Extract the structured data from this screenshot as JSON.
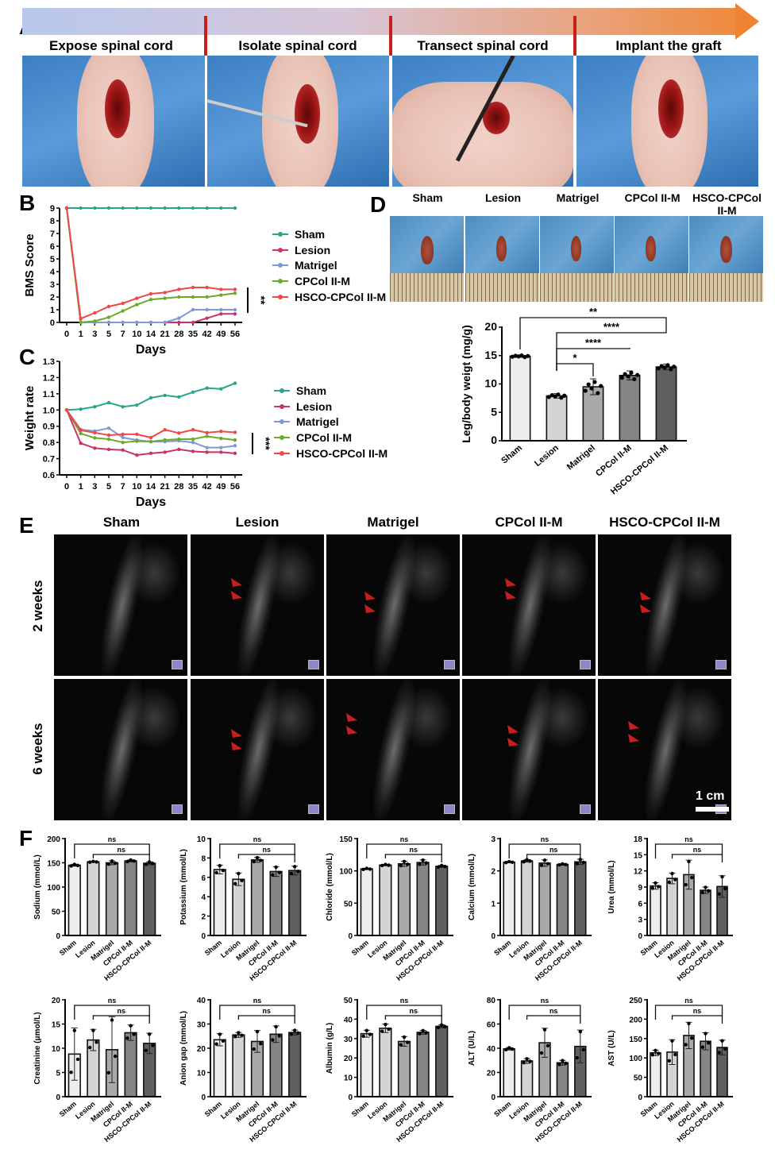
{
  "panel_labels": {
    "a": "A",
    "b": "B",
    "c": "C",
    "d": "D",
    "e": "E",
    "f": "F"
  },
  "panel_a": {
    "steps": [
      "Expose spinal cord",
      "Isolate spinal cord",
      "Transect spinal cord",
      "Implant the graft"
    ]
  },
  "groups": [
    "Sham",
    "Lesion",
    "Matrigel",
    "CPCol II-M",
    "HSCO-CPCol II-M"
  ],
  "colors": {
    "series": [
      "#2aa58b",
      "#c8336b",
      "#7f98d6",
      "#6aab2a",
      "#f0484a"
    ],
    "bars": [
      "#ededed",
      "#d4d4d4",
      "#a9a9a9",
      "#858585",
      "#5f5f5f"
    ],
    "arrow": "#c81e1e"
  },
  "panel_d": {
    "photo_labels": [
      "Sham",
      "Lesion",
      "Matrigel",
      "CPCol II-M",
      "HSCO-CPCol II-M"
    ]
  },
  "panel_e": {
    "columns": [
      "Sham",
      "Lesion",
      "Matrigel",
      "CPCol II-M",
      "HSCO-CPCol II-M"
    ],
    "rows": [
      "2 weeks",
      "6 weeks"
    ],
    "scale_bar": "1 cm"
  },
  "chart_data": [
    {
      "id": "B",
      "type": "line",
      "ylabel": "BMS Score",
      "xlabel": "Days",
      "x": [
        "0",
        "1",
        "3",
        "5",
        "7",
        "10",
        "14",
        "21",
        "28",
        "35",
        "42",
        "49",
        "56"
      ],
      "ylim": [
        0,
        9
      ],
      "yticks": [
        0,
        1,
        2,
        3,
        4,
        5,
        6,
        7,
        8,
        9
      ],
      "legend_position": "right",
      "significance": "**",
      "series": [
        {
          "name": "Sham",
          "values": [
            9,
            9,
            9,
            9,
            9,
            9,
            9,
            9,
            9,
            9,
            9,
            9,
            9
          ]
        },
        {
          "name": "Lesion",
          "values": [
            9,
            0,
            0,
            0,
            0,
            0,
            0,
            0,
            0,
            0,
            0.33,
            0.67,
            0.67
          ]
        },
        {
          "name": "Matrigel",
          "values": [
            9,
            0,
            0,
            0,
            0,
            0,
            0,
            0,
            0.33,
            1,
            1,
            1,
            1
          ]
        },
        {
          "name": "CPCol II-M",
          "values": [
            9,
            0,
            0.1,
            0.4,
            0.9,
            1.4,
            1.8,
            1.9,
            2,
            2,
            2,
            2.15,
            2.3
          ]
        },
        {
          "name": "HSCO-CPCol II-M",
          "values": [
            9,
            0.3,
            0.75,
            1.25,
            1.5,
            1.9,
            2.25,
            2.35,
            2.6,
            2.75,
            2.75,
            2.6,
            2.6
          ]
        }
      ]
    },
    {
      "id": "C",
      "type": "line",
      "ylabel": "Weight rate",
      "xlabel": "Days",
      "x": [
        "0",
        "1",
        "3",
        "5",
        "7",
        "10",
        "14",
        "21",
        "28",
        "35",
        "42",
        "49",
        "56"
      ],
      "ylim": [
        0.6,
        1.3
      ],
      "yticks": [
        "0.6",
        "0.7",
        "0.8",
        "0.9",
        "1.0",
        "1.1",
        "1.2",
        "1.3"
      ],
      "legend_position": "right",
      "significance": "***",
      "series": [
        {
          "name": "Sham",
          "values": [
            1,
            1.005,
            1.02,
            1.045,
            1.02,
            1.03,
            1.075,
            1.09,
            1.08,
            1.11,
            1.135,
            1.13,
            1.165
          ]
        },
        {
          "name": "Lesion",
          "values": [
            1,
            0.795,
            0.765,
            0.757,
            0.753,
            0.722,
            0.733,
            0.74,
            0.757,
            0.745,
            0.74,
            0.74,
            0.733
          ]
        },
        {
          "name": "Matrigel",
          "values": [
            1,
            0.88,
            0.87,
            0.888,
            0.83,
            0.815,
            0.805,
            0.805,
            0.81,
            0.8,
            0.768,
            0.768,
            0.78
          ]
        },
        {
          "name": "CPCol II-M",
          "values": [
            1,
            0.855,
            0.828,
            0.82,
            0.8,
            0.808,
            0.805,
            0.815,
            0.82,
            0.82,
            0.838,
            0.825,
            0.815
          ]
        },
        {
          "name": "HSCO-CPCol II-M",
          "values": [
            1,
            0.875,
            0.86,
            0.845,
            0.85,
            0.85,
            0.83,
            0.878,
            0.858,
            0.878,
            0.86,
            0.868,
            0.862
          ]
        }
      ]
    },
    {
      "id": "D",
      "type": "bar",
      "ylabel": "Leg/body weigt (mg/g)",
      "categories": [
        "Sham",
        "Lesion",
        "Matrigel",
        "CPCol II-M",
        "HSCO-CPCol II-M"
      ],
      "values": [
        14.9,
        7.9,
        9.5,
        11.5,
        13.0
      ],
      "sd": [
        0.2,
        0.4,
        1.4,
        0.8,
        0.5
      ],
      "ylim": [
        0,
        20
      ],
      "yticks": [
        0,
        5,
        10,
        15,
        20
      ],
      "comparisons": [
        {
          "from": "Sham",
          "to": "HSCO-CPCol II-M",
          "label": "**"
        },
        {
          "from": "Lesion",
          "to": "HSCO-CPCol II-M",
          "label": "****"
        },
        {
          "from": "Lesion",
          "to": "CPCol II-M",
          "label": "****"
        },
        {
          "from": "Lesion",
          "to": "Matrigel",
          "label": "*"
        }
      ]
    },
    {
      "id": "F1",
      "type": "bar",
      "ylabel": "Sodium (mmol/L)",
      "categories": [
        "Sham",
        "Lesion",
        "Matrigel",
        "CPCol II-M",
        "HSCO-CPCol II-M"
      ],
      "values": [
        145,
        152,
        150,
        154,
        149
      ],
      "sd": [
        2,
        1,
        4,
        2,
        3
      ],
      "ylim": [
        0,
        200
      ],
      "yticks": [
        0,
        50,
        100,
        150,
        200
      ],
      "comparisons": [
        {
          "from": "Sham",
          "to": "HSCO-CPCol II-M",
          "label": "ns"
        },
        {
          "from": "Lesion",
          "to": "HSCO-CPCol II-M",
          "label": "ns"
        }
      ]
    },
    {
      "id": "F2",
      "type": "bar",
      "ylabel": "Potassium (mmol/L)",
      "categories": [
        "Sham",
        "Lesion",
        "Matrigel",
        "CPCol II-M",
        "HSCO-CPCol II-M"
      ],
      "values": [
        6.8,
        5.8,
        7.8,
        6.6,
        6.7
      ],
      "sd": [
        0.45,
        0.65,
        0.25,
        0.5,
        0.45
      ],
      "ylim": [
        0,
        10
      ],
      "yticks": [
        0,
        2,
        4,
        6,
        8,
        10
      ],
      "comparisons": [
        {
          "from": "Sham",
          "to": "HSCO-CPCol II-M",
          "label": "ns"
        },
        {
          "from": "Lesion",
          "to": "HSCO-CPCol II-M",
          "label": "ns"
        }
      ]
    },
    {
      "id": "F3",
      "type": "bar",
      "ylabel": "Chloride (mmol/L)",
      "categories": [
        "Sham",
        "Lesion",
        "Matrigel",
        "CPCol II-M",
        "HSCO-CPCol II-M"
      ],
      "values": [
        103,
        109,
        111,
        113,
        107
      ],
      "sd": [
        1,
        1,
        4,
        4,
        1.5
      ],
      "ylim": [
        0,
        150
      ],
      "yticks": [
        0,
        50,
        100,
        150
      ],
      "comparisons": [
        {
          "from": "Sham",
          "to": "HSCO-CPCol II-M",
          "label": "ns"
        },
        {
          "from": "Lesion",
          "to": "HSCO-CPCol II-M",
          "label": "ns"
        }
      ]
    },
    {
      "id": "F4",
      "type": "bar",
      "ylabel": "Calcium (mmol/L)",
      "categories": [
        "Sham",
        "Lesion",
        "Matrigel",
        "CPCol II-M",
        "HSCO-CPCol II-M"
      ],
      "values": [
        2.27,
        2.31,
        2.24,
        2.2,
        2.28
      ],
      "sd": [
        0.02,
        0.04,
        0.1,
        0.02,
        0.08
      ],
      "ylim": [
        0,
        3
      ],
      "yticks": [
        0,
        1,
        2,
        3
      ],
      "comparisons": [
        {
          "from": "Sham",
          "to": "HSCO-CPCol II-M",
          "label": "ns"
        },
        {
          "from": "Lesion",
          "to": "HSCO-CPCol II-M",
          "label": "ns"
        }
      ]
    },
    {
      "id": "F5",
      "type": "bar",
      "ylabel": "Urea (mmol/L)",
      "categories": [
        "Sham",
        "Lesion",
        "Matrigel",
        "CPCol II-M",
        "HSCO-CPCol II-M"
      ],
      "values": [
        9.2,
        10.6,
        11.3,
        8.4,
        9.1
      ],
      "sd": [
        0.6,
        1.0,
        2.7,
        0.6,
        2.0
      ],
      "ylim": [
        0,
        18
      ],
      "yticks": [
        0,
        3,
        6,
        9,
        12,
        15,
        18
      ],
      "comparisons": [
        {
          "from": "Sham",
          "to": "HSCO-CPCol II-M",
          "label": "ns"
        },
        {
          "from": "Lesion",
          "to": "HSCO-CPCol II-M",
          "label": "ns"
        }
      ]
    },
    {
      "id": "F6",
      "type": "bar",
      "ylabel": "Creatinine (μmol/L)",
      "categories": [
        "Sham",
        "Lesion",
        "Matrigel",
        "CPCol II-M",
        "HSCO-CPCol II-M"
      ],
      "values": [
        8.8,
        11.7,
        9.7,
        13.2,
        11.0
      ],
      "sd": [
        5.4,
        2.2,
        6.8,
        1.6,
        2.1
      ],
      "ylim": [
        0,
        20
      ],
      "yticks": [
        0,
        5,
        10,
        15,
        20
      ],
      "comparisons": [
        {
          "from": "Sham",
          "to": "HSCO-CPCol II-M",
          "label": "ns"
        },
        {
          "from": "Lesion",
          "to": "HSCO-CPCol II-M",
          "label": "ns"
        }
      ]
    },
    {
      "id": "F7",
      "type": "bar",
      "ylabel": "Anion gap (mmol/L)",
      "categories": [
        "Sham",
        "Lesion",
        "Matrigel",
        "CPCol II-M",
        "HSCO-CPCol II-M"
      ],
      "values": [
        23.5,
        25.5,
        22.8,
        25.8,
        26.5
      ],
      "sd": [
        2.5,
        1,
        4.5,
        3.4,
        1
      ],
      "ylim": [
        0,
        40
      ],
      "yticks": [
        0,
        10,
        20,
        30,
        40
      ],
      "comparisons": [
        {
          "from": "Sham",
          "to": "HSCO-CPCol II-M",
          "label": "ns"
        },
        {
          "from": "Lesion",
          "to": "HSCO-CPCol II-M",
          "label": "ns"
        }
      ]
    },
    {
      "id": "F8",
      "type": "bar",
      "ylabel": "Albumin (g/L)",
      "categories": [
        "Sham",
        "Lesion",
        "Matrigel",
        "CPCol II-M",
        "HSCO-CPCol II-M"
      ],
      "values": [
        32.5,
        35.3,
        28.5,
        33.2,
        36.3
      ],
      "sd": [
        1.8,
        2.2,
        2.5,
        1,
        0.8
      ],
      "ylim": [
        0,
        50
      ],
      "yticks": [
        0,
        10,
        20,
        30,
        40,
        50
      ],
      "comparisons": [
        {
          "from": "Sham",
          "to": "HSCO-CPCol II-M",
          "label": "ns"
        },
        {
          "from": "Lesion",
          "to": "HSCO-CPCol II-M",
          "label": "ns"
        }
      ]
    },
    {
      "id": "F9",
      "type": "bar",
      "ylabel": "ALT (U/L)",
      "categories": [
        "Sham",
        "Lesion",
        "Matrigel",
        "CPCol II-M",
        "HSCO-CPCol II-M"
      ],
      "values": [
        39.5,
        29.5,
        44.5,
        28,
        41.5
      ],
      "sd": [
        1,
        2,
        12,
        2,
        13.5
      ],
      "ylim": [
        0,
        80
      ],
      "yticks": [
        0,
        20,
        40,
        60,
        80
      ],
      "comparisons": [
        {
          "from": "Sham",
          "to": "HSCO-CPCol II-M",
          "label": "ns"
        },
        {
          "from": "Lesion",
          "to": "HSCO-CPCol II-M",
          "label": "ns"
        }
      ]
    },
    {
      "id": "F10",
      "type": "bar",
      "ylabel": "AST (U/L)",
      "categories": [
        "Sham",
        "Lesion",
        "Matrigel",
        "CPCol II-M",
        "HSCO-CPCol II-M"
      ],
      "values": [
        113,
        115,
        158,
        143,
        127
      ],
      "sd": [
        7,
        32,
        34,
        22,
        19
      ],
      "ylim": [
        0,
        250
      ],
      "yticks": [
        0,
        50,
        100,
        150,
        200,
        250
      ],
      "comparisons": [
        {
          "from": "Sham",
          "to": "HSCO-CPCol II-M",
          "label": "ns"
        },
        {
          "from": "Lesion",
          "to": "HSCO-CPCol II-M",
          "label": "ns"
        }
      ]
    }
  ]
}
